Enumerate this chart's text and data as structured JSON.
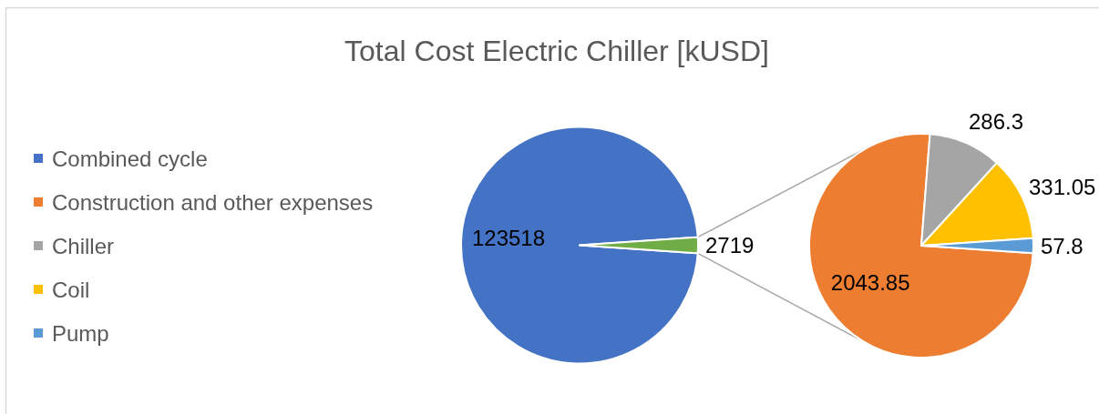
{
  "chart_data": [
    {
      "type": "pie",
      "title": "Total Cost Electric Chiller [kUSD]",
      "categories": [
        "Combined cycle",
        null
      ],
      "values": [
        123518,
        2719
      ],
      "colors": [
        "#4472c4",
        "#70ad47"
      ],
      "data_labels": true,
      "legend": "left"
    },
    {
      "type": "pie",
      "categories": [
        "Construction and other expenses",
        "Chiller",
        "Coil",
        "Pump"
      ],
      "values": [
        2043.85,
        286.3,
        331.05,
        57.8
      ],
      "colors": [
        "#ed7d31",
        "#a5a5a5",
        "#ffc000",
        "#5b9bd5"
      ],
      "data_labels": true,
      "legend": "left"
    }
  ]
}
